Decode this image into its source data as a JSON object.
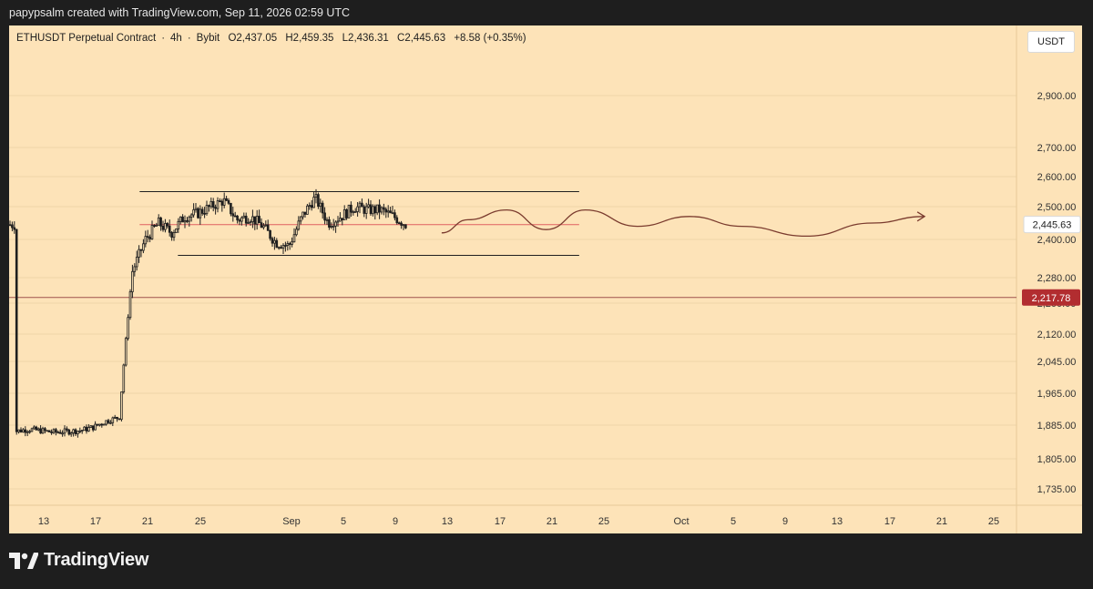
{
  "header": {
    "credit": "papypsalm created with TradingView.com, Sep 11, 2026 02:59 UTC"
  },
  "legend": {
    "symbol": "ETHUSDT Perpetual Contract",
    "interval": "4h",
    "exchange": "Bybit",
    "open": "O2,437.05",
    "high": "H2,459.35",
    "low": "L2,436.31",
    "close": "C2,445.63",
    "change": "+8.58 (+0.35%)",
    "separator": "·"
  },
  "currency_button": "USDT",
  "footer": {
    "brand": "TradingView"
  },
  "colors": {
    "background": "#fde3b8",
    "candle": "#1f1f1f",
    "price_line": "#e06060",
    "support_line": "#a0524d",
    "support_label_bg": "#b22d30",
    "projection_line": "#7a3b2e"
  },
  "chart_data": {
    "type": "candlestick",
    "y_axis_labels": [
      "2,900.00",
      "2,700.00",
      "2,600.00",
      "2,500.00",
      "2,400.00",
      "2,280.00",
      "2,200.00",
      "2,120.00",
      "2,045.00",
      "1,965.00",
      "1,885.00",
      "1,805.00",
      "1,735.00"
    ],
    "y_axis_values": [
      2900,
      2700,
      2600,
      2500,
      2400,
      2280,
      2200,
      2120,
      2045,
      1965,
      1885,
      1805,
      1735
    ],
    "x_axis_labels": [
      "13",
      "17",
      "21",
      "25",
      "Sep",
      "5",
      "9",
      "13",
      "17",
      "21",
      "25",
      "Oct",
      "5",
      "9",
      "13",
      "17",
      "21",
      "25"
    ],
    "current_price": {
      "value": 2445.63,
      "label": "2,445.63"
    },
    "support_level": {
      "value": 2217.78,
      "label": "2,217.78"
    },
    "range_box": {
      "top": 2550,
      "mid": 2445,
      "bottom": 2350,
      "start": "Aug 20",
      "end": "Sep 21"
    },
    "price_path": [
      [
        "Aug 11",
        1870
      ],
      [
        "Aug 12",
        1875
      ],
      [
        "Aug 13",
        1872
      ],
      [
        "Aug 14",
        1868
      ],
      [
        "Aug 15",
        1870
      ],
      [
        "Aug 16",
        1872
      ],
      [
        "Aug 17",
        1880
      ],
      [
        "Aug 18",
        1895
      ],
      [
        "Aug 19",
        1905
      ],
      [
        "Aug 19 late",
        2140
      ],
      [
        "Aug 20",
        2300
      ],
      [
        "Aug 21",
        2400
      ],
      [
        "Aug 22",
        2450
      ],
      [
        "Aug 23",
        2420
      ],
      [
        "Aug 24",
        2470
      ],
      [
        "Aug 25",
        2480
      ],
      [
        "Aug 26",
        2500
      ],
      [
        "Aug 27",
        2520
      ],
      [
        "Aug 28",
        2460
      ],
      [
        "Aug 29",
        2470
      ],
      [
        "Aug 30",
        2440
      ],
      [
        "Aug 31",
        2390
      ],
      [
        "Sep 1",
        2380
      ],
      [
        "Sep 2",
        2470
      ],
      [
        "Sep 3",
        2530
      ],
      [
        "Sep 4",
        2450
      ],
      [
        "Sep 5",
        2470
      ],
      [
        "Sep 6",
        2500
      ],
      [
        "Sep 7",
        2490
      ],
      [
        "Sep 8",
        2490
      ],
      [
        "Sep 9",
        2470
      ],
      [
        "Sep 10",
        2445
      ]
    ],
    "projection_path": [
      [
        "Sep 12",
        2420
      ],
      [
        "Sep 14",
        2460
      ],
      [
        "Sep 17",
        2490
      ],
      [
        "Sep 20",
        2430
      ],
      [
        "Sep 23",
        2490
      ],
      [
        "Sep 27",
        2440
      ],
      [
        "Oct 1",
        2470
      ],
      [
        "Oct 5",
        2440
      ],
      [
        "Oct 10",
        2410
      ],
      [
        "Oct 15",
        2450
      ],
      [
        "Oct 19",
        2470
      ]
    ]
  }
}
